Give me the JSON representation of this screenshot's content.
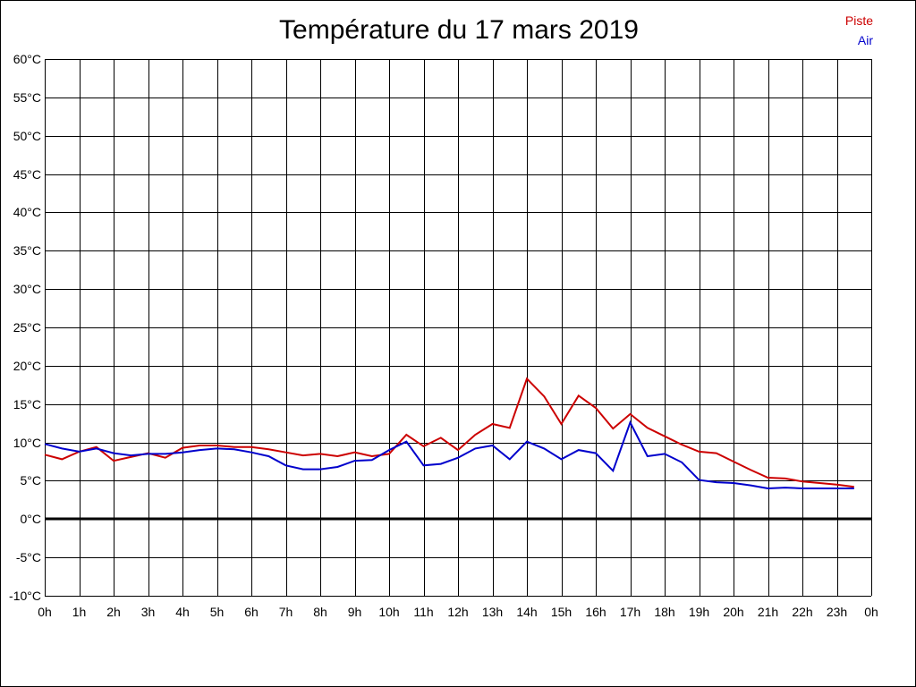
{
  "chart_data": {
    "type": "line",
    "title": "Température du 17 mars 2019",
    "xlabel": "",
    "ylabel": "",
    "ylim": [
      -10,
      60
    ],
    "xlim": [
      0,
      24
    ],
    "grid": true,
    "legend_position": "top-right",
    "x_tick_labels": [
      "0h",
      "1h",
      "2h",
      "3h",
      "4h",
      "5h",
      "6h",
      "7h",
      "8h",
      "9h",
      "10h",
      "11h",
      "12h",
      "13h",
      "14h",
      "15h",
      "16h",
      "17h",
      "18h",
      "19h",
      "20h",
      "21h",
      "22h",
      "23h",
      "0h"
    ],
    "y_tick_labels": [
      "-10°C",
      "-5°C",
      "0°C",
      "5°C",
      "10°C",
      "15°C",
      "20°C",
      "25°C",
      "30°C",
      "35°C",
      "40°C",
      "45°C",
      "50°C",
      "55°C",
      "60°C"
    ],
    "y_ticks": [
      -10,
      -5,
      0,
      5,
      10,
      15,
      20,
      25,
      30,
      35,
      40,
      45,
      50,
      55,
      60
    ],
    "x": [
      0,
      0.5,
      1,
      1.5,
      2,
      2.5,
      3,
      3.5,
      4,
      4.5,
      5,
      5.5,
      6,
      6.5,
      7,
      7.5,
      8,
      8.5,
      9,
      9.5,
      10,
      10.5,
      11,
      11.5,
      12,
      12.5,
      13,
      13.5,
      14,
      14.5,
      15,
      15.5,
      16,
      16.5,
      17,
      17.5,
      18,
      18.5,
      19,
      19.5,
      20,
      20.5,
      21,
      21.5,
      22,
      22.5,
      23,
      23.5
    ],
    "series": [
      {
        "name": "Piste",
        "color": "#cc0000",
        "values": [
          8.4,
          7.8,
          8.8,
          9.4,
          7.6,
          8.1,
          8.6,
          8.0,
          9.3,
          9.6,
          9.6,
          9.4,
          9.4,
          9.1,
          8.7,
          8.3,
          8.5,
          8.2,
          8.7,
          8.2,
          8.5,
          11.0,
          9.5,
          10.6,
          9.0,
          11.0,
          12.4,
          11.9,
          18.3,
          16.0,
          12.4,
          16.1,
          14.5,
          11.8,
          13.7,
          11.9,
          10.8,
          9.7,
          8.8,
          8.6,
          7.5,
          6.4,
          5.4,
          5.3,
          4.9,
          4.7,
          4.5,
          4.2
        ]
      },
      {
        "name": "Air",
        "color": "#0000cc",
        "values": [
          9.8,
          9.2,
          8.8,
          9.2,
          8.6,
          8.3,
          8.5,
          8.5,
          8.7,
          9.0,
          9.2,
          9.1,
          8.7,
          8.2,
          7.0,
          6.5,
          6.5,
          6.8,
          7.6,
          7.7,
          9.0,
          10.1,
          7.0,
          7.2,
          8.0,
          9.2,
          9.6,
          7.8,
          10.1,
          9.2,
          7.8,
          9.0,
          8.6,
          6.3,
          12.6,
          8.2,
          8.5,
          7.4,
          5.1,
          4.8,
          4.7,
          4.4,
          4.0,
          4.1,
          4.0,
          4.0,
          4.0,
          4.0
        ]
      }
    ]
  }
}
